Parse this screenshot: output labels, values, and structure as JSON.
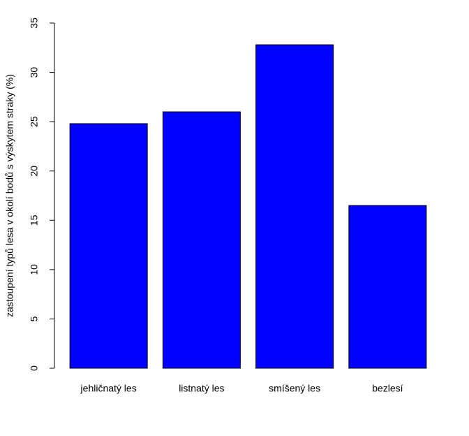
{
  "chart_data": {
    "type": "bar",
    "ylabel": "zastoupení typů lesa v okolí bodů s výskytem straky (%)",
    "categories": [
      "jehličnatý les",
      "listnatý les",
      "smíšený les",
      "bezlesí"
    ],
    "values": [
      24.8,
      26.0,
      32.8,
      16.5
    ],
    "color": "#0000ff",
    "ylim": [
      0,
      35
    ],
    "yticks": [
      0,
      5,
      10,
      15,
      20,
      25,
      30,
      35
    ],
    "grid": false
  }
}
